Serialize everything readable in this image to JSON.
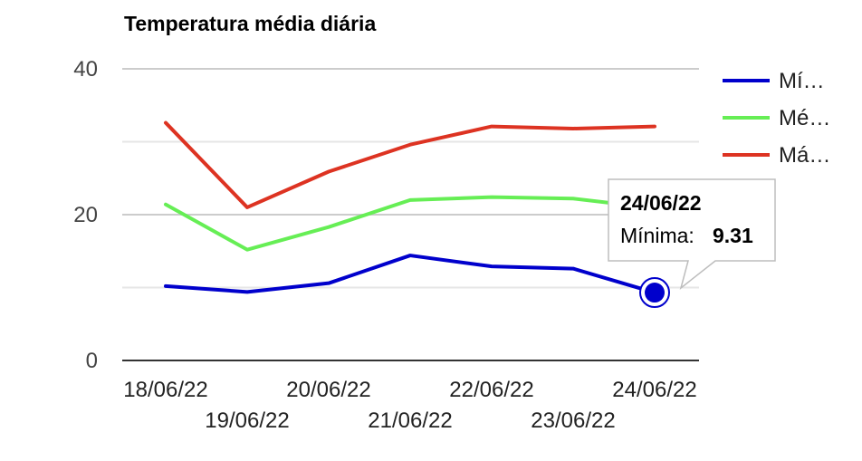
{
  "chart_data": {
    "type": "line",
    "title": "Temperatura média diária",
    "categories": [
      "18/06/22",
      "19/06/22",
      "20/06/22",
      "21/06/22",
      "22/06/22",
      "23/06/22",
      "24/06/22"
    ],
    "ylim": [
      0,
      40
    ],
    "yticks": [
      "0",
      "20",
      "40"
    ],
    "grid": true,
    "legend_position": "right",
    "series": [
      {
        "name": "Mí…",
        "color": "#0000cc",
        "values": [
          10.2,
          9.4,
          10.6,
          14.4,
          12.9,
          12.6,
          9.31
        ]
      },
      {
        "name": "Mé…",
        "color": "#66ee55",
        "values": [
          21.4,
          15.2,
          18.3,
          22.0,
          22.4,
          22.2,
          20.9
        ]
      },
      {
        "name": "Má…",
        "color": "#dd3322",
        "values": [
          32.6,
          21.0,
          25.9,
          29.6,
          32.1,
          31.8,
          32.1
        ]
      }
    ],
    "tooltip": {
      "title": "24/06/22",
      "label": "Mínima:",
      "value": "9.31",
      "series_index": 0,
      "category_index": 6
    }
  }
}
